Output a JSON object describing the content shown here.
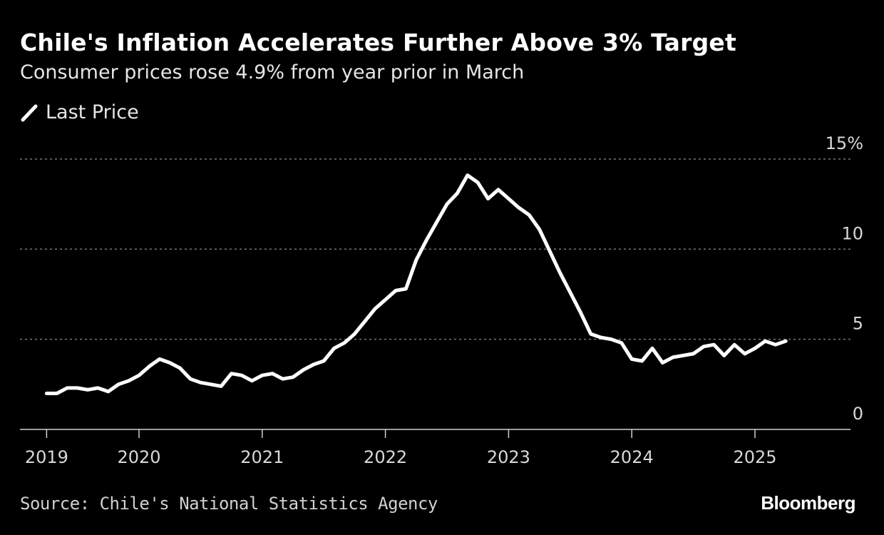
{
  "title": "Chile's Inflation Accelerates Further Above 3% Target",
  "subtitle": "Consumer prices rose 4.9% from year prior in March",
  "legend": {
    "label": "Last Price"
  },
  "source": "Source: Chile's National Statistics Agency",
  "brand": "Bloomberg",
  "colors": {
    "background": "#000000",
    "line": "#ffffff",
    "grid": "#777777"
  },
  "chart_data": {
    "type": "line",
    "title": "Chile's Inflation Accelerates Further Above 3% Target",
    "xlabel": "",
    "ylabel": "",
    "ylim": [
      0,
      15
    ],
    "y_ticks": [
      {
        "value": 15,
        "label": "15%"
      },
      {
        "value": 10,
        "label": "10"
      },
      {
        "value": 5,
        "label": "5"
      },
      {
        "value": 0,
        "label": "0"
      }
    ],
    "x_ticks": [
      "2019",
      "2020",
      "2021",
      "2022",
      "2023",
      "2024",
      "2025"
    ],
    "grid": "horizontal dotted",
    "legend_position": "top-left",
    "series": [
      {
        "name": "Last Price",
        "start": "2019-03",
        "frequency": "monthly",
        "values": [
          2.0,
          2.0,
          2.3,
          2.3,
          2.2,
          2.3,
          2.1,
          2.5,
          2.7,
          3.0,
          3.5,
          3.9,
          3.7,
          3.4,
          2.8,
          2.6,
          2.5,
          2.4,
          3.1,
          3.0,
          2.7,
          3.0,
          3.1,
          2.8,
          2.9,
          3.3,
          3.6,
          3.8,
          4.5,
          4.8,
          5.3,
          6.0,
          6.7,
          7.2,
          7.7,
          7.8,
          9.4,
          10.5,
          11.5,
          12.5,
          13.1,
          14.1,
          13.7,
          12.8,
          13.3,
          12.8,
          12.3,
          11.9,
          11.1,
          9.9,
          8.7,
          7.6,
          6.5,
          5.3,
          5.1,
          5.0,
          4.8,
          3.9,
          3.8,
          4.5,
          3.7,
          4.0,
          4.1,
          4.2,
          4.6,
          4.7,
          4.1,
          4.7,
          4.2,
          4.5,
          4.9,
          4.7,
          4.9
        ]
      }
    ]
  }
}
